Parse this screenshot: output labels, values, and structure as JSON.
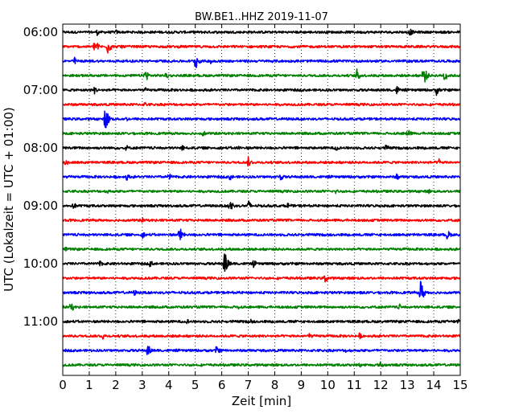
{
  "chart_data": {
    "type": "line",
    "title": "BW.BE1..HHZ 2019-11-07",
    "xlabel": "Zeit  [min]",
    "ylabel": "UTC (Lokalzeit = UTC + 01:00)",
    "xlim": [
      0,
      15
    ],
    "x_ticks": [
      "0",
      "1",
      "2",
      "3",
      "4",
      "5",
      "6",
      "7",
      "8",
      "9",
      "10",
      "11",
      "12",
      "13",
      "14",
      "15"
    ],
    "y_tick_labels": [
      "06:00",
      "07:00",
      "08:00",
      "09:00",
      "10:00",
      "11:00"
    ],
    "grid": "vertical dotted at each minute",
    "trace_colors": [
      "#000000",
      "#ff0000",
      "#0000ff",
      "#008000"
    ],
    "traces": [
      {
        "start": "06:00",
        "color": "#000000",
        "events": [
          {
            "t": 1.3,
            "amp": 0.25
          },
          {
            "t": 2.0,
            "amp": 0.2
          },
          {
            "t": 13.1,
            "amp": 0.3
          }
        ]
      },
      {
        "start": "06:15",
        "color": "#ff0000",
        "events": [
          {
            "t": 1.2,
            "amp": 0.7
          },
          {
            "t": 1.7,
            "amp": 0.6
          },
          {
            "t": 2.2,
            "amp": 0.2
          }
        ]
      },
      {
        "start": "06:30",
        "color": "#0000ff",
        "events": [
          {
            "t": 0.45,
            "amp": 0.3
          },
          {
            "t": 5.0,
            "amp": 0.7
          },
          {
            "t": 5.6,
            "amp": 0.3
          }
        ]
      },
      {
        "start": "06:45",
        "color": "#008000",
        "events": [
          {
            "t": 3.1,
            "amp": 0.6
          },
          {
            "t": 3.9,
            "amp": 0.3
          },
          {
            "t": 11.1,
            "amp": 0.5
          },
          {
            "t": 13.6,
            "amp": 0.9
          },
          {
            "t": 14.4,
            "amp": 0.5
          }
        ]
      },
      {
        "start": "07:00",
        "color": "#000000",
        "events": [
          {
            "t": 1.2,
            "amp": 0.3
          },
          {
            "t": 3.1,
            "amp": 0.2
          },
          {
            "t": 12.6,
            "amp": 0.35
          },
          {
            "t": 14.1,
            "amp": 0.4
          }
        ]
      },
      {
        "start": "07:15",
        "color": "#ff0000",
        "events": [
          {
            "t": 3.1,
            "amp": 0.2
          }
        ]
      },
      {
        "start": "07:30",
        "color": "#0000ff",
        "events": [
          {
            "t": 1.6,
            "amp": 1.0
          },
          {
            "t": 2.4,
            "amp": 0.2
          }
        ]
      },
      {
        "start": "07:45",
        "color": "#008000",
        "events": [
          {
            "t": 5.3,
            "amp": 0.25
          },
          {
            "t": 13.0,
            "amp": 0.4
          }
        ]
      },
      {
        "start": "08:00",
        "color": "#000000",
        "events": [
          {
            "t": 2.4,
            "amp": 0.25
          },
          {
            "t": 4.5,
            "amp": 0.25
          },
          {
            "t": 6.6,
            "amp": 0.25
          },
          {
            "t": 10.3,
            "amp": 0.3
          },
          {
            "t": 12.2,
            "amp": 0.3
          }
        ]
      },
      {
        "start": "08:15",
        "color": "#ff0000",
        "events": [
          {
            "t": 0.1,
            "amp": 0.35
          },
          {
            "t": 7.0,
            "amp": 0.4
          },
          {
            "t": 14.2,
            "amp": 0.3
          }
        ]
      },
      {
        "start": "08:30",
        "color": "#0000ff",
        "events": [
          {
            "t": 2.4,
            "amp": 0.3
          },
          {
            "t": 4.0,
            "amp": 0.35
          },
          {
            "t": 6.3,
            "amp": 0.3
          },
          {
            "t": 8.2,
            "amp": 0.35
          },
          {
            "t": 12.6,
            "amp": 0.3
          }
        ]
      },
      {
        "start": "08:45",
        "color": "#008000",
        "events": [
          {
            "t": 1.7,
            "amp": 0.2
          },
          {
            "t": 10.3,
            "amp": 0.2
          },
          {
            "t": 13.8,
            "amp": 0.2
          }
        ]
      },
      {
        "start": "09:00",
        "color": "#000000",
        "events": [
          {
            "t": 0.4,
            "amp": 0.3
          },
          {
            "t": 6.3,
            "amp": 0.6
          },
          {
            "t": 7.0,
            "amp": 0.45
          },
          {
            "t": 8.5,
            "amp": 0.3
          }
        ]
      },
      {
        "start": "09:15",
        "color": "#ff0000",
        "events": [
          {
            "t": 3.0,
            "amp": 0.2
          }
        ]
      },
      {
        "start": "09:30",
        "color": "#0000ff",
        "events": [
          {
            "t": 3.0,
            "amp": 0.3
          },
          {
            "t": 4.4,
            "amp": 0.65
          },
          {
            "t": 14.5,
            "amp": 0.45
          }
        ]
      },
      {
        "start": "09:45",
        "color": "#008000",
        "events": [
          {
            "t": 0.1,
            "amp": 0.2
          }
        ]
      },
      {
        "start": "10:00",
        "color": "#000000",
        "events": [
          {
            "t": 1.4,
            "amp": 0.25
          },
          {
            "t": 3.3,
            "amp": 0.3
          },
          {
            "t": 6.1,
            "amp": 1.0
          },
          {
            "t": 7.2,
            "amp": 0.3
          }
        ]
      },
      {
        "start": "10:15",
        "color": "#ff0000",
        "events": [
          {
            "t": 9.9,
            "amp": 0.4
          }
        ]
      },
      {
        "start": "10:30",
        "color": "#0000ff",
        "events": [
          {
            "t": 2.7,
            "amp": 0.25
          },
          {
            "t": 11.2,
            "amp": 0.2
          },
          {
            "t": 13.5,
            "amp": 1.0
          }
        ]
      },
      {
        "start": "10:45",
        "color": "#008000",
        "events": [
          {
            "t": 0.3,
            "amp": 0.45
          },
          {
            "t": 6.6,
            "amp": 0.25
          },
          {
            "t": 12.7,
            "amp": 0.25
          }
        ]
      },
      {
        "start": "11:00",
        "color": "#000000",
        "events": [
          {
            "t": 4.7,
            "amp": 0.2
          },
          {
            "t": 7.1,
            "amp": 0.2
          },
          {
            "t": 14.9,
            "amp": 0.3
          }
        ]
      },
      {
        "start": "11:15",
        "color": "#ff0000",
        "events": [
          {
            "t": 1.5,
            "amp": 0.3
          },
          {
            "t": 9.3,
            "amp": 0.25
          },
          {
            "t": 11.2,
            "amp": 0.25
          }
        ]
      },
      {
        "start": "11:30",
        "color": "#0000ff",
        "events": [
          {
            "t": 3.2,
            "amp": 0.5
          },
          {
            "t": 5.8,
            "amp": 0.4
          },
          {
            "t": 10.7,
            "amp": 0.2
          }
        ]
      },
      {
        "start": "11:45",
        "color": "#008000",
        "events": [
          {
            "t": 11.2,
            "amp": 0.2
          },
          {
            "t": 12.0,
            "amp": 0.35
          }
        ]
      }
    ]
  }
}
